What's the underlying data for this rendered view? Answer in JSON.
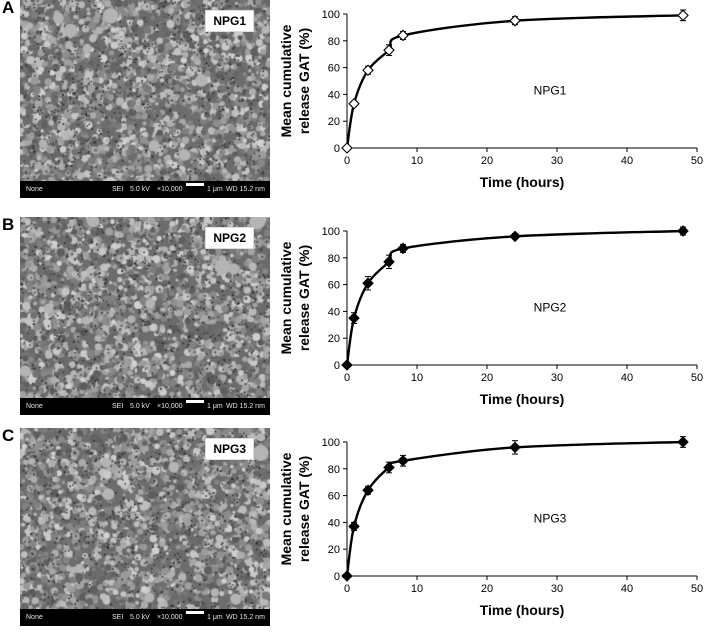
{
  "panels": [
    {
      "letter": "A",
      "sem": {
        "tag": "NPG1",
        "footer": {
          "detector": "None",
          "mode": "SEI",
          "voltage": "5.0 kV",
          "magnification": "×10,000",
          "scale": "1 μm",
          "wd": "WD 15.2 nm"
        }
      },
      "chart_data": {
        "type": "line",
        "marker": "open-diamond",
        "xlabel": "Time (hours)",
        "ylabel_line1": "Mean cumulative",
        "ylabel_line2": "release GAT (%)",
        "annotation": "NPG1",
        "xlim": [
          0,
          50
        ],
        "ylim": [
          0,
          100
        ],
        "xticks": [
          0,
          10,
          20,
          30,
          40,
          50
        ],
        "yticks": [
          0,
          20,
          40,
          60,
          80,
          100
        ],
        "x": [
          0,
          1,
          3,
          6,
          8,
          24,
          48
        ],
        "y": [
          0,
          33,
          58,
          73,
          84,
          95,
          99
        ],
        "err": [
          0,
          2,
          3,
          4,
          3,
          3,
          4
        ]
      }
    },
    {
      "letter": "B",
      "sem": {
        "tag": "NPG2",
        "footer": {
          "detector": "None",
          "mode": "SEI",
          "voltage": "5.0 kV",
          "magnification": "×10,000",
          "scale": "1 μm",
          "wd": "WD 15.2 nm"
        }
      },
      "chart_data": {
        "type": "line",
        "marker": "filled-diamond",
        "xlabel": "Time (hours)",
        "ylabel_line1": "Mean cumulative",
        "ylabel_line2": "release GAT (%)",
        "annotation": "NPG2",
        "xlim": [
          0,
          50
        ],
        "ylim": [
          0,
          100
        ],
        "xticks": [
          0,
          10,
          20,
          30,
          40,
          50
        ],
        "yticks": [
          0,
          20,
          40,
          60,
          80,
          100
        ],
        "x": [
          0,
          1,
          3,
          6,
          8,
          24,
          48
        ],
        "y": [
          0,
          35,
          61,
          77,
          87,
          96,
          100
        ],
        "err": [
          0,
          4,
          5,
          5,
          3,
          2,
          3
        ]
      }
    },
    {
      "letter": "C",
      "sem": {
        "tag": "NPG3",
        "footer": {
          "detector": "None",
          "mode": "SEI",
          "voltage": "5.0 kV",
          "magnification": "×10,000",
          "scale": "1 μm",
          "wd": "WD 15.2 nm"
        }
      },
      "chart_data": {
        "type": "line",
        "marker": "filled-diamond",
        "xlabel": "Time (hours)",
        "ylabel_line1": "Mean cumulative",
        "ylabel_line2": "release GAT (%)",
        "annotation": "NPG3",
        "xlim": [
          0,
          50
        ],
        "ylim": [
          0,
          100
        ],
        "xticks": [
          0,
          10,
          20,
          30,
          40,
          50
        ],
        "yticks": [
          0,
          20,
          40,
          60,
          80,
          100
        ],
        "x": [
          0,
          1,
          3,
          6,
          8,
          24,
          48
        ],
        "y": [
          0,
          37,
          64,
          81,
          86,
          96,
          100
        ],
        "err": [
          0,
          3,
          3,
          4,
          4,
          5,
          4
        ]
      }
    }
  ]
}
